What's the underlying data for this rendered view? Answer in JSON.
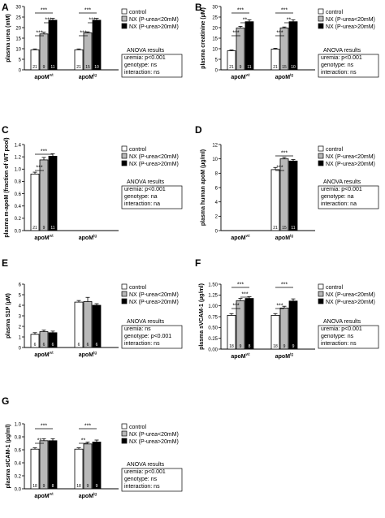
{
  "legend_labels": [
    "control",
    "NX (P-urea<20mM)",
    "NX (P-urea>20mM)"
  ],
  "colors": {
    "control": "#ffffff",
    "mid": "#b8b8b8",
    "high": "#000000",
    "stroke": "#000000"
  },
  "chart_data": [
    {
      "type": "bar",
      "panel": "A",
      "ylabel": "plasma urea (mM)",
      "ylim": [
        0,
        30
      ],
      "yticks": [
        "0",
        "5",
        "10",
        "15",
        "20",
        "25",
        "30"
      ],
      "groups": [
        {
          "label": "apoM",
          "sup": "wt",
          "values": [
            9.5,
            17.0,
            23.5
          ],
          "errors": [
            0.4,
            0.8,
            0.9
          ],
          "n": [
            "21",
            "9",
            "11"
          ]
        },
        {
          "label": "apoM",
          "sup": "tg",
          "values": [
            9.5,
            17.5,
            23.5
          ],
          "errors": [
            0.4,
            0.5,
            0.9
          ],
          "n": [
            "21",
            "15",
            "10"
          ]
        }
      ],
      "significance": [
        "***",
        "***",
        "***",
        "***",
        "***",
        "***"
      ],
      "anova": [
        "ANOVA results",
        "uremia: p<0.001",
        "genotype: ns",
        "interaction: ns"
      ]
    },
    {
      "type": "bar",
      "panel": "B",
      "ylabel": "plasma creatinine (µM)",
      "ylim": [
        0,
        30
      ],
      "yticks": [
        "0",
        "5",
        "10",
        "15",
        "20",
        "25",
        "30"
      ],
      "groups": [
        {
          "label": "apoM",
          "sup": "wt",
          "values": [
            9.0,
            19.8,
            22.8
          ],
          "errors": [
            0.4,
            0.8,
            0.9
          ],
          "n": [
            "21",
            "9",
            "11"
          ]
        },
        {
          "label": "apoM",
          "sup": "tg",
          "values": [
            9.8,
            19.8,
            22.8
          ],
          "errors": [
            0.4,
            0.5,
            0.9
          ],
          "n": [
            "21",
            "15",
            "10"
          ]
        }
      ],
      "significance": [
        "***",
        "**",
        "***",
        "***",
        "**",
        "***"
      ],
      "anova": [
        "ANOVA results",
        "uremia: p<0.001",
        "genotype: ns",
        "interaction: ns"
      ]
    },
    {
      "type": "bar",
      "panel": "C",
      "ylabel": "plasma m-apoM (fraction of WT pool)",
      "ylim": [
        0,
        1.4
      ],
      "yticks": [
        "0.0",
        "0.2",
        "0.4",
        "0.6",
        "0.8",
        "1.0",
        "1.2",
        "1.4"
      ],
      "groups": [
        {
          "label": "apoM",
          "sup": "wt",
          "values": [
            0.92,
            1.15,
            1.21
          ],
          "errors": [
            0.03,
            0.04,
            0.04
          ],
          "n": [
            "21",
            "9",
            "11"
          ]
        },
        {
          "label": "apoM",
          "sup": "tg",
          "values": [
            0,
            0,
            0
          ],
          "errors": [
            0,
            0,
            0
          ],
          "n": [
            "",
            "",
            ""
          ]
        }
      ],
      "significance": [
        "***",
        "***"
      ],
      "anova": [
        "ANOVA results",
        "uremia: p<0.001",
        "genotype: na",
        "interaction: na"
      ]
    },
    {
      "type": "bar",
      "panel": "D",
      "ylabel": "plasma human apoM (µg/ml)",
      "ylim": [
        0,
        12
      ],
      "yticks": [
        "0",
        "2",
        "4",
        "6",
        "8",
        "10",
        "12"
      ],
      "groups": [
        {
          "label": "apoM",
          "sup": "wt",
          "values": [
            0,
            0,
            0
          ],
          "errors": [
            0,
            0,
            0
          ],
          "n": [
            "",
            "",
            ""
          ]
        },
        {
          "label": "apoM",
          "sup": "tg",
          "values": [
            8.5,
            10.0,
            9.7
          ],
          "errors": [
            0.3,
            0.2,
            0.2
          ],
          "n": [
            "21",
            "15",
            "11"
          ]
        }
      ],
      "significance": [
        "***",
        "***"
      ],
      "anova": [
        "ANOVA results",
        "uremia: p<0.001",
        "genotype: na",
        "interaction: na"
      ]
    },
    {
      "type": "bar",
      "panel": "E",
      "ylabel": "plasma S1P (µM)",
      "ylim": [
        0,
        6
      ],
      "yticks": [
        "0",
        "1",
        "2",
        "3",
        "4",
        "5",
        "6"
      ],
      "groups": [
        {
          "label": "apoM",
          "sup": "wt",
          "values": [
            1.25,
            1.5,
            1.4
          ],
          "errors": [
            0.15,
            0.15,
            0.15
          ],
          "n": [
            "6",
            "6",
            "6"
          ]
        },
        {
          "label": "apoM",
          "sup": "tg",
          "values": [
            4.3,
            4.35,
            4.0
          ],
          "errors": [
            0.15,
            0.4,
            0.15
          ],
          "n": [
            "6",
            "6",
            "6"
          ]
        }
      ],
      "significance": [],
      "anova": [
        "ANOVA results",
        "uremia: ns",
        "genotype: p<0.001",
        "interaction: ns"
      ]
    },
    {
      "type": "bar",
      "panel": "F",
      "ylabel": "plasma sVCAM-1 (µg/ml)",
      "ylim": [
        0,
        1.5
      ],
      "yticks": [
        "0.00",
        "0.25",
        "0.50",
        "0.75",
        "1.00",
        "1.25",
        "1.50"
      ],
      "groups": [
        {
          "label": "apoM",
          "sup": "wt",
          "values": [
            0.78,
            1.12,
            1.17
          ],
          "errors": [
            0.04,
            0.05,
            0.04
          ],
          "n": [
            "18",
            "9",
            "8"
          ]
        },
        {
          "label": "apoM",
          "sup": "tg",
          "values": [
            0.78,
            0.95,
            1.11
          ],
          "errors": [
            0.04,
            0.04,
            0.05
          ],
          "n": [
            "18",
            "9",
            "9"
          ]
        }
      ],
      "significance": [
        "***",
        "***",
        "***",
        "***",
        "***"
      ],
      "anova": [
        "ANOVA results",
        "uremia: p<0.001",
        "genotype: ns",
        "interaction: ns"
      ]
    },
    {
      "type": "bar",
      "panel": "G",
      "ylabel": "plasma sICAM-1 (µg/ml)",
      "ylim": [
        0,
        1.0
      ],
      "yticks": [
        "0.0",
        "0.2",
        "0.4",
        "0.6",
        "0.8",
        "1.0"
      ],
      "groups": [
        {
          "label": "apoM",
          "sup": "wt",
          "values": [
            0.61,
            0.74,
            0.74
          ],
          "errors": [
            0.02,
            0.03,
            0.03
          ],
          "n": [
            "18",
            "9",
            "8"
          ]
        },
        {
          "label": "apoM",
          "sup": "tg",
          "values": [
            0.61,
            0.69,
            0.72
          ],
          "errors": [
            0.02,
            0.03,
            0.03
          ],
          "n": [
            "18",
            "9",
            "9"
          ]
        }
      ],
      "significance": [
        "***",
        "**",
        "***",
        "**"
      ],
      "anova": [
        "ANOVA results",
        "uremia: p<0.001",
        "genotype: ns",
        "interaction: ns"
      ]
    }
  ]
}
